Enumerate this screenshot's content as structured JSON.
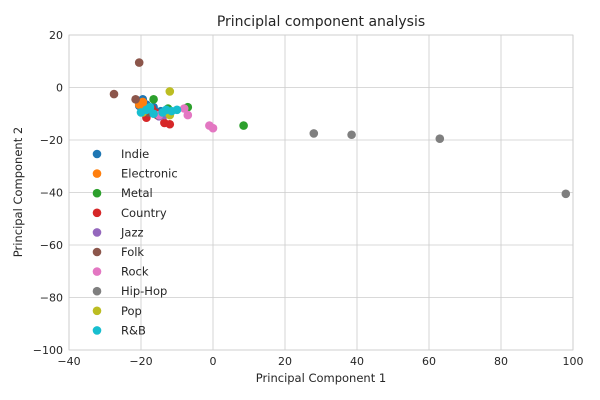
{
  "chart_data": {
    "type": "scatter",
    "title": "Principlal component analysis",
    "xlabel": "Principal Component 1",
    "ylabel": "Principal Component 2",
    "xlim": [
      -40,
      100
    ],
    "ylim": [
      -100,
      20
    ],
    "xticks": [
      -40,
      -20,
      0,
      20,
      40,
      60,
      80,
      100
    ],
    "yticks": [
      -100,
      -80,
      -60,
      -40,
      -20,
      0,
      20
    ],
    "grid": true,
    "legend_position": "left",
    "series": [
      {
        "name": "Indie",
        "color": "#1f77b4",
        "points": [
          [
            -19.5,
            -4.5
          ],
          [
            -18.5,
            -6.5
          ],
          [
            -17.5,
            -8.5
          ],
          [
            -16.5,
            -7.5
          ],
          [
            -14.5,
            -9.0
          ],
          [
            -20.5,
            -7.0
          ]
        ]
      },
      {
        "name": "Electronic",
        "color": "#ff7f0e",
        "points": [
          [
            -20.5,
            -6.5
          ],
          [
            -19.5,
            -5.5
          ],
          [
            -19.0,
            -7.5
          ],
          [
            -18.0,
            -9.0
          ]
        ]
      },
      {
        "name": "Metal",
        "color": "#2ca02c",
        "points": [
          [
            -16.5,
            -4.5
          ],
          [
            -7.0,
            -7.5
          ],
          [
            8.5,
            -14.5
          ],
          [
            -12.5,
            -8.0
          ]
        ]
      },
      {
        "name": "Country",
        "color": "#d62728",
        "points": [
          [
            -18.5,
            -11.5
          ],
          [
            -13.5,
            -13.5
          ],
          [
            -12.0,
            -14.0
          ],
          [
            -16.0,
            -9.5
          ],
          [
            -17.0,
            -8.0
          ]
        ]
      },
      {
        "name": "Jazz",
        "color": "#9467bd",
        "points": [
          [
            -15.0,
            -11.0
          ],
          [
            -17.5,
            -9.5
          ],
          [
            -13.5,
            -10.5
          ]
        ]
      },
      {
        "name": "Folk",
        "color": "#8c564b",
        "points": [
          [
            -20.5,
            9.5
          ],
          [
            -27.5,
            -2.5
          ],
          [
            -21.5,
            -4.5
          ],
          [
            -18.0,
            -9.5
          ],
          [
            -15.5,
            -10.5
          ]
        ]
      },
      {
        "name": "Rock",
        "color": "#e377c2",
        "points": [
          [
            -1.0,
            -14.5
          ],
          [
            0.0,
            -15.5
          ],
          [
            -7.0,
            -10.5
          ],
          [
            -8.0,
            -8.0
          ],
          [
            -15.0,
            -10.5
          ]
        ]
      },
      {
        "name": "Hip-Hop",
        "color": "#7f7f7f",
        "points": [
          [
            28.0,
            -17.5
          ],
          [
            38.5,
            -18.0
          ],
          [
            63.0,
            -19.5
          ],
          [
            98.0,
            -40.5
          ]
        ]
      },
      {
        "name": "Pop",
        "color": "#bcbd22",
        "points": [
          [
            -12.0,
            -1.5
          ],
          [
            -12.0,
            -10.5
          ],
          [
            -19.5,
            -9.5
          ]
        ]
      },
      {
        "name": "R&B",
        "color": "#17becf",
        "points": [
          [
            -20.0,
            -9.5
          ],
          [
            -18.5,
            -8.5
          ],
          [
            -16.5,
            -10.0
          ],
          [
            -13.0,
            -8.5
          ],
          [
            -11.5,
            -9.0
          ],
          [
            -10.0,
            -8.5
          ],
          [
            -17.5,
            -7.5
          ],
          [
            -14.0,
            -9.5
          ]
        ]
      }
    ]
  }
}
